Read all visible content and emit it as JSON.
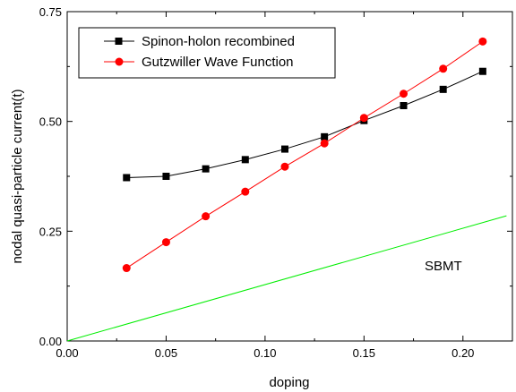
{
  "chart_data": {
    "type": "line",
    "xlabel": "doping",
    "ylabel": "nodal quasi-particle current(t)",
    "xlim": [
      0.0,
      0.225
    ],
    "ylim": [
      0.0,
      0.75
    ],
    "x_ticks": [
      0.0,
      0.05,
      0.1,
      0.15,
      0.2
    ],
    "x_tick_labels": [
      "0.00",
      "0.05",
      "0.10",
      "0.15",
      "0.20"
    ],
    "y_ticks": [
      0.0,
      0.25,
      0.5,
      0.75
    ],
    "y_tick_labels": [
      "0.00",
      "0.25",
      "0.50",
      "0.75"
    ],
    "grid": false,
    "legend_position": "top-left",
    "series": [
      {
        "name": "Spinon-holon recombined",
        "color": "#000000",
        "marker": "square",
        "x": [
          0.03,
          0.05,
          0.07,
          0.09,
          0.11,
          0.13,
          0.15,
          0.17,
          0.19,
          0.21
        ],
        "y": [
          0.372,
          0.375,
          0.392,
          0.413,
          0.437,
          0.465,
          0.502,
          0.536,
          0.573,
          0.614
        ]
      },
      {
        "name": "Gutzwiller Wave Function",
        "color": "#ff0000",
        "marker": "circle",
        "x": [
          0.03,
          0.05,
          0.07,
          0.09,
          0.11,
          0.13,
          0.15,
          0.17,
          0.19,
          0.21
        ],
        "y": [
          0.166,
          0.225,
          0.284,
          0.34,
          0.397,
          0.45,
          0.508,
          0.563,
          0.62,
          0.682
        ]
      }
    ],
    "reference_line": {
      "label": "SBMT",
      "color": "#00ee00",
      "x": [
        0.0,
        0.222
      ],
      "y": [
        0.0,
        0.285
      ]
    }
  }
}
